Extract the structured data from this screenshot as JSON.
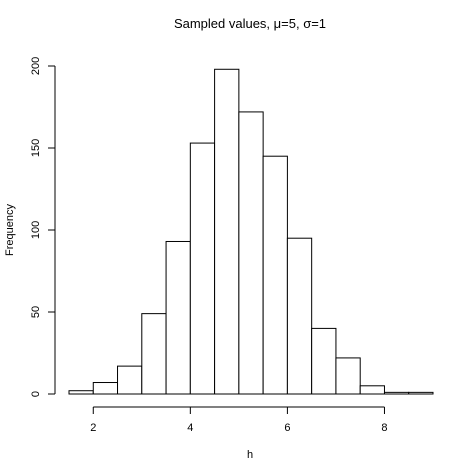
{
  "chart_data": {
    "type": "bar",
    "title": "Sampled values, μ=5, σ=1",
    "xlabel": "h",
    "ylabel": "Frequency",
    "x_ticks": [
      2,
      4,
      6,
      8
    ],
    "y_ticks": [
      0,
      50,
      100,
      150,
      200
    ],
    "xlim": [
      1.5,
      9.0
    ],
    "ylim": [
      0,
      200
    ],
    "bins": [
      {
        "start": 1.5,
        "end": 2.0,
        "count": 2
      },
      {
        "start": 2.0,
        "end": 2.5,
        "count": 7
      },
      {
        "start": 2.5,
        "end": 3.0,
        "count": 17
      },
      {
        "start": 3.0,
        "end": 3.5,
        "count": 49
      },
      {
        "start": 3.5,
        "end": 4.0,
        "count": 93
      },
      {
        "start": 4.0,
        "end": 4.5,
        "count": 153
      },
      {
        "start": 4.5,
        "end": 5.0,
        "count": 198
      },
      {
        "start": 5.0,
        "end": 5.5,
        "count": 172
      },
      {
        "start": 5.5,
        "end": 6.0,
        "count": 145
      },
      {
        "start": 6.0,
        "end": 6.5,
        "count": 95
      },
      {
        "start": 6.5,
        "end": 7.0,
        "count": 40
      },
      {
        "start": 7.0,
        "end": 7.5,
        "count": 22
      },
      {
        "start": 7.5,
        "end": 8.0,
        "count": 5
      },
      {
        "start": 8.0,
        "end": 8.5,
        "count": 1
      },
      {
        "start": 8.5,
        "end": 9.0,
        "count": 1
      }
    ],
    "bar_fill": "#ffffff",
    "bar_stroke": "#000000",
    "grid": false
  }
}
